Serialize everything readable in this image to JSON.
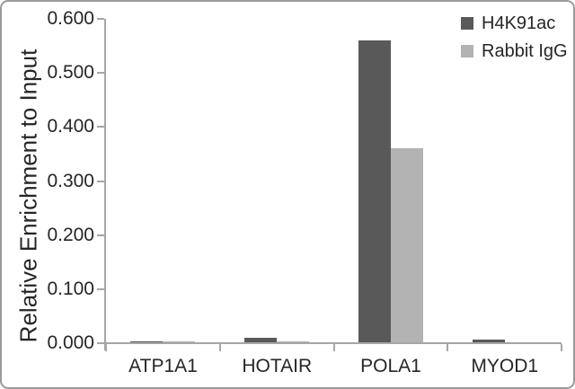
{
  "chart_data": {
    "type": "bar",
    "title": "",
    "xlabel": "",
    "ylabel": "Relative Enrichment to Input",
    "categories": [
      "ATP1A1",
      "HOTAIR",
      "POLA1",
      "MYOD1"
    ],
    "series": [
      {
        "name": "H4K91ac",
        "color": "#595959",
        "values": [
          0.004,
          0.01,
          0.56,
          0.006
        ]
      },
      {
        "name": "Rabbit IgG",
        "color": "#b3b3b3",
        "values": [
          0.003,
          0.003,
          0.36,
          0.002
        ]
      }
    ],
    "ylim": [
      0.0,
      0.6
    ],
    "ytick_step": 0.1,
    "ytick_decimals": 3,
    "ytick_labels": [
      "0.000",
      "0.100",
      "0.200",
      "0.300",
      "0.400",
      "0.500",
      "0.600"
    ],
    "grid": false,
    "legend_position": "top-right"
  },
  "colors": {
    "axis": "#a6a6a6",
    "text": "#262626",
    "panel_border": "#9b9b9b",
    "background": "#ffffff"
  }
}
